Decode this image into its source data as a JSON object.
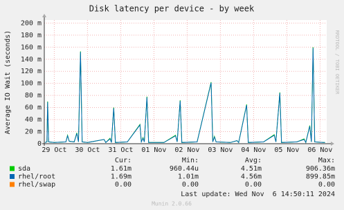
{
  "chart_data": {
    "type": "line",
    "title": "Disk latency per device - by week",
    "y_label": "Average IO Wait (seconds)",
    "side_label": "RRDTOOL / TOBI OETIKER",
    "x": [
      -0.28,
      -0.22,
      -0.2,
      -0.17,
      0.0,
      0.35,
      0.4,
      0.45,
      0.6,
      0.68,
      0.73,
      0.79,
      0.84,
      1.0,
      1.5,
      1.55,
      1.68,
      1.72,
      1.79,
      1.84,
      2.2,
      2.58,
      2.62,
      2.67,
      2.71,
      2.79,
      2.84,
      3.3,
      3.65,
      3.7,
      3.79,
      3.84,
      4.3,
      4.72,
      4.77,
      4.82,
      4.87,
      5.3,
      5.5,
      5.55,
      5.79,
      5.84,
      6.3,
      6.62,
      6.67,
      6.79,
      6.84,
      7.3,
      7.52,
      7.57,
      7.69,
      7.74,
      7.79,
      7.84,
      8.1,
      8.15
    ],
    "series": [
      {
        "name": "sda",
        "color": "#00cc00",
        "cur": "1.61m",
        "min": "960.44u",
        "avg": "4.51m",
        "max": "906.36m",
        "values": [
          2,
          3,
          70,
          3,
          2,
          3,
          14,
          4,
          3,
          18,
          3,
          153,
          3,
          2,
          7,
          2,
          9,
          2,
          60,
          2,
          3,
          32,
          3,
          10,
          3,
          78,
          2,
          2,
          14,
          3,
          72,
          2,
          3,
          102,
          3,
          12,
          3,
          2,
          5,
          2,
          65,
          2,
          3,
          15,
          3,
          85,
          2,
          3,
          8,
          2,
          30,
          3,
          160,
          3,
          2,
          2
        ]
      },
      {
        "name": "rhel/root",
        "color": "#0066b3",
        "cur": "1.69m",
        "min": "1.01m",
        "avg": "4.56m",
        "max": "899.85m",
        "values": [
          2,
          3,
          69,
          3,
          2,
          3,
          13,
          4,
          3,
          17,
          3,
          152,
          3,
          2,
          7,
          2,
          8,
          2,
          59,
          2,
          3,
          31,
          3,
          9,
          3,
          77,
          2,
          2,
          13,
          3,
          71,
          2,
          3,
          101,
          3,
          11,
          3,
          2,
          5,
          2,
          64,
          2,
          3,
          14,
          3,
          84,
          2,
          3,
          7,
          2,
          29,
          3,
          159,
          3,
          2,
          2
        ]
      },
      {
        "name": "rhel/swap",
        "color": "#ff8000",
        "cur": "0.00",
        "min": "0.00",
        "avg": "0.00",
        "max": "0.00",
        "values": [
          0,
          0,
          0,
          0,
          0,
          0,
          0,
          0,
          0,
          0,
          0,
          0,
          0,
          0,
          0,
          0,
          0,
          0,
          0,
          0,
          0,
          0,
          0,
          0,
          0,
          0,
          0,
          0,
          0,
          0,
          0,
          0,
          0,
          0,
          0,
          0,
          0,
          0,
          0,
          0,
          0,
          0,
          0,
          0,
          0,
          0,
          0,
          0,
          0,
          0,
          0,
          0,
          0,
          0,
          0,
          0
        ]
      }
    ],
    "xlim": [
      -0.3,
      8.2
    ],
    "xticks": [
      {
        "value": 0,
        "label": "29 Oct"
      },
      {
        "value": 1,
        "label": "30 Oct"
      },
      {
        "value": 2,
        "label": "31 Oct"
      },
      {
        "value": 3,
        "label": "01 Nov"
      },
      {
        "value": 4,
        "label": "02 Nov"
      },
      {
        "value": 5,
        "label": "03 Nov"
      },
      {
        "value": 6,
        "label": "04 Nov"
      },
      {
        "value": 7,
        "label": "05 Nov"
      },
      {
        "value": 8,
        "label": "06 Nov"
      }
    ],
    "ylim": [
      0,
      205
    ],
    "yticks": [
      0,
      {
        "value": 20,
        "label": "20 m"
      },
      {
        "value": 40,
        "label": "40 m"
      },
      {
        "value": 60,
        "label": "60 m"
      },
      {
        "value": 80,
        "label": "80 m"
      },
      {
        "value": 100,
        "label": "100 m"
      },
      {
        "value": 120,
        "label": "120 m"
      },
      {
        "value": 140,
        "label": "140 m"
      },
      {
        "value": 160,
        "label": "160 m"
      },
      {
        "value": 180,
        "label": "180 m"
      },
      {
        "value": 200,
        "label": "200 m"
      }
    ],
    "grid": true,
    "stats_headers": [
      "Cur:",
      "Min:",
      "Avg:",
      "Max:"
    ],
    "last_update": "Last update: Wed Nov  6 14:50:11 2024",
    "footer": "Munin 2.0.66"
  }
}
